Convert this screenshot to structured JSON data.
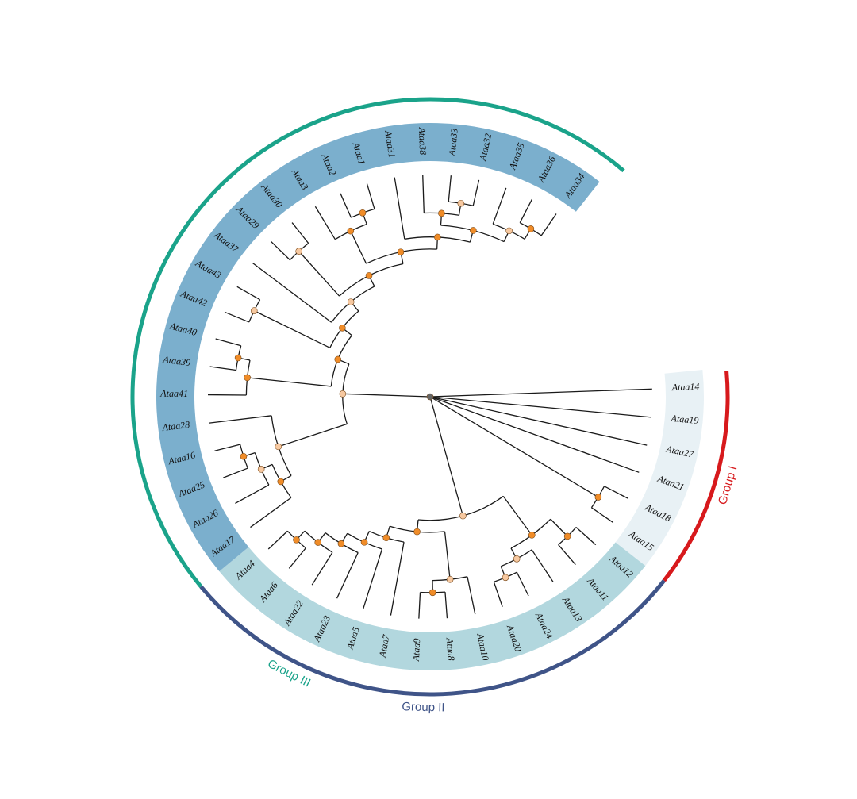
{
  "groups": [
    {
      "name": "Group I",
      "color": "#d7191c",
      "band_color": "#e8f1f5"
    },
    {
      "name": "Group II",
      "color": "#3f5488",
      "band_color": "#b2d7de"
    },
    {
      "name": "Group III",
      "color": "#1aa38a",
      "band_color": "#7bafcd"
    }
  ],
  "leaves": [
    {
      "name": "Ataa14",
      "group": 0
    },
    {
      "name": "Ataa19",
      "group": 0
    },
    {
      "name": "Ataa27",
      "group": 0
    },
    {
      "name": "Ataa21",
      "group": 0
    },
    {
      "name": "Ataa18",
      "group": 0
    },
    {
      "name": "Ataa15",
      "group": 0
    },
    {
      "name": "Ataa12",
      "group": 1
    },
    {
      "name": "Ataa11",
      "group": 1
    },
    {
      "name": "Ataa13",
      "group": 1
    },
    {
      "name": "Ataa24",
      "group": 1
    },
    {
      "name": "Ataa20",
      "group": 1
    },
    {
      "name": "Ataa10",
      "group": 1
    },
    {
      "name": "Ataa8",
      "group": 1
    },
    {
      "name": "Ataa9",
      "group": 1
    },
    {
      "name": "Ataa7",
      "group": 1
    },
    {
      "name": "Ataa5",
      "group": 1
    },
    {
      "name": "Ataa23",
      "group": 1
    },
    {
      "name": "Ataa22",
      "group": 1
    },
    {
      "name": "Ataa6",
      "group": 1
    },
    {
      "name": "Ataa4",
      "group": 1
    },
    {
      "name": "Ataa17",
      "group": 2
    },
    {
      "name": "Ataa26",
      "group": 2
    },
    {
      "name": "Ataa25",
      "group": 2
    },
    {
      "name": "Ataa16",
      "group": 2
    },
    {
      "name": "Ataa28",
      "group": 2
    },
    {
      "name": "Ataa41",
      "group": 2
    },
    {
      "name": "Ataa39",
      "group": 2
    },
    {
      "name": "Ataa40",
      "group": 2
    },
    {
      "name": "Ataa42",
      "group": 2
    },
    {
      "name": "Ataa43",
      "group": 2
    },
    {
      "name": "Ataa37",
      "group": 2
    },
    {
      "name": "Ataa29",
      "group": 2
    },
    {
      "name": "Ataa30",
      "group": 2
    },
    {
      "name": "Ataa3",
      "group": 2
    },
    {
      "name": "Ataa2",
      "group": 2
    },
    {
      "name": "Ataa1",
      "group": 2
    },
    {
      "name": "Ataa31",
      "group": 2
    },
    {
      "name": "Ataa38",
      "group": 2
    },
    {
      "name": "Ataa33",
      "group": 2
    },
    {
      "name": "Ataa32",
      "group": 2
    },
    {
      "name": "Ataa35",
      "group": 2
    },
    {
      "name": "Ataa36",
      "group": 2
    },
    {
      "name": "Ataa34",
      "group": 2
    }
  ],
  "tree": "(Ataa14,Ataa19,Ataa27,Ataa21,(Ataa18,Ataa15),(((Ataa12,Ataa11),(Ataa13,(Ataa24,Ataa20))),((Ataa10,(Ataa8,Ataa9)),(Ataa7,(Ataa5,(Ataa23,(Ataa22,(Ataa6,Ataa4))))))),(((Ataa17,(Ataa26,(Ataa25,Ataa16))),Ataa28),((Ataa41,(Ataa39,Ataa40)),((Ataa42,Ataa43),(Ataa37,((Ataa29,Ataa30),((Ataa3,(Ataa2,Ataa1)),(Ataa31,((Ataa38,(Ataa33,Ataa32)),(Ataa35,(Ataa36,Ataa34))))))))))",
  "node_colors": {
    "strong": "#f08c28",
    "weak": "#f6c8a0",
    "root": "#666666"
  }
}
